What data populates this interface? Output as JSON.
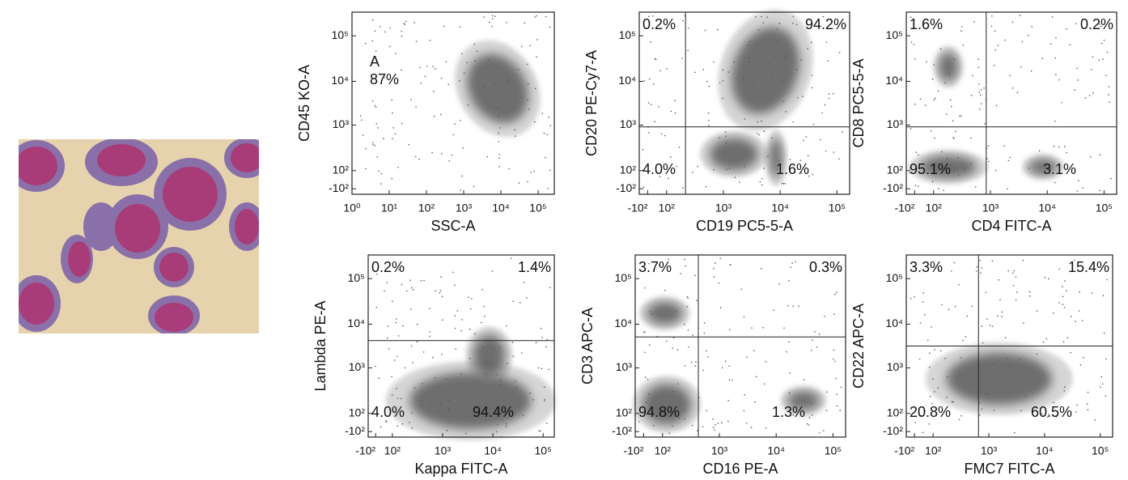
{
  "panels": [
    {
      "y_label": "CD45 KO-A",
      "x_label": "SSC-A",
      "x_ticks": [
        "10⁰",
        "10¹",
        "10²",
        "10³",
        "10⁴",
        "10⁵"
      ],
      "y_ticks": [
        "10⁵",
        "10⁴",
        "10³",
        "10²",
        "-10²"
      ],
      "gate": {
        "name": "A",
        "percent": "87%"
      }
    },
    {
      "y_label": "CD20 PE-Cy7-A",
      "x_label": "CD19 PC5-5-A",
      "x_ticks": [
        "-10²",
        "10²",
        "10³",
        "10⁴",
        "10⁵"
      ],
      "y_ticks": [
        "10⁵",
        "10⁴",
        "10³",
        "10²",
        "-10²"
      ],
      "quadrants": {
        "top_left": "0.2%",
        "top_right": "94.2%",
        "bottom_left": "4.0%",
        "bottom_right": "1.6%"
      }
    },
    {
      "y_label": "CD8 PC5-5-A",
      "x_label": "CD4 FITC-A",
      "x_ticks": [
        "-10²",
        "10²",
        "10³",
        "10⁴",
        "10⁵"
      ],
      "y_ticks": [
        "10⁵",
        "10⁴",
        "10³",
        "10²",
        "-10²"
      ],
      "quadrants": {
        "top_left": "1.6%",
        "top_right": "0.2%",
        "bottom_left": "95.1%",
        "bottom_right": "3.1%"
      }
    },
    {
      "y_label": "Lambda PE-A",
      "x_label": "Kappa FITC-A",
      "x_ticks": [
        "-10²",
        "10²",
        "10³",
        "10⁴",
        "10⁵"
      ],
      "y_ticks": [
        "10⁵",
        "10⁴",
        "10³",
        "10²",
        "-10²"
      ],
      "quadrants": {
        "top_left": "0.2%",
        "top_right": "1.4%",
        "bottom_left": "4.0%",
        "bottom_right": "94.4%"
      }
    },
    {
      "y_label": "CD3 APC-A",
      "x_label": "CD16 PE-A",
      "x_ticks": [
        "-10²",
        "10²",
        "10³",
        "10⁴",
        "10⁵"
      ],
      "y_ticks": [
        "10⁵",
        "10⁴",
        "10³",
        "10²",
        "-10²"
      ],
      "quadrants": {
        "top_left": "3.7%",
        "top_right": "0.3%",
        "bottom_left": "94.8%",
        "bottom_right": "1.3%"
      }
    },
    {
      "y_label": "CD22 APC-A",
      "x_label": "FMC7 FITC-A",
      "x_ticks": [
        "-10²",
        "10²",
        "10³",
        "10⁴",
        "10⁵"
      ],
      "y_ticks": [
        "10⁵",
        "10⁴",
        "10³",
        "10²",
        "-10²"
      ],
      "quadrants": {
        "top_left": "3.3%",
        "top_right": "15.4%",
        "bottom_left": "20.8%",
        "bottom_right": "60.5%"
      }
    }
  ]
}
